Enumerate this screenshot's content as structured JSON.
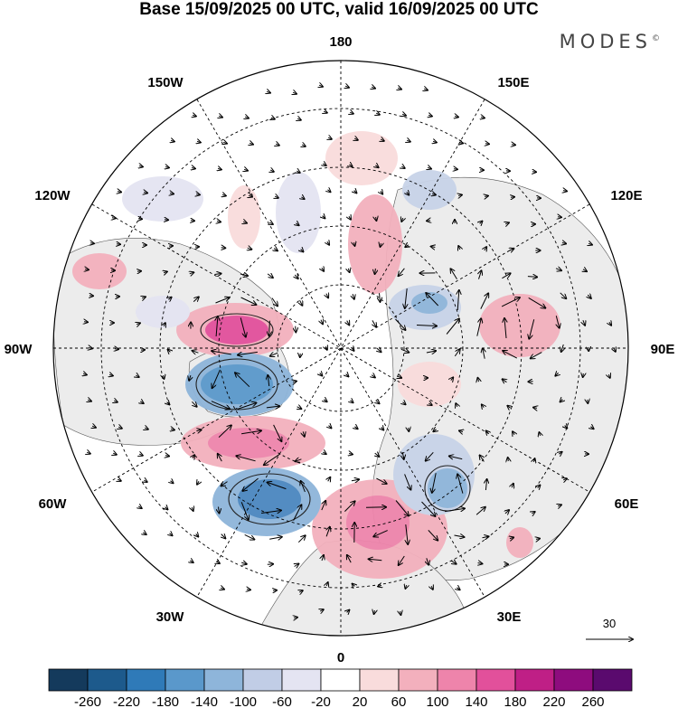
{
  "title": "Base 15/09/2025 00 UTC, valid 16/09/2025 00 UTC",
  "brand": "MODES",
  "brand_mark": "©",
  "longitudes": {
    "top": "180",
    "bottom": "0",
    "left": "90W",
    "right": "90E",
    "upper_left_1": "150W",
    "upper_left_2": "120W",
    "upper_right_1": "150E",
    "upper_right_2": "120E",
    "lower_left_1": "60W",
    "lower_left_2": "30W",
    "lower_right_1": "60E",
    "lower_right_2": "30E"
  },
  "vector_reference": {
    "value": "30"
  },
  "colorbar": {
    "labels": [
      "-260",
      "-220",
      "-180",
      "-140",
      "-100",
      "-60",
      "-20",
      "20",
      "60",
      "100",
      "140",
      "180",
      "220",
      "260"
    ],
    "colors": [
      "#143a5c",
      "#1d5a8c",
      "#2f7ab8",
      "#5a98cb",
      "#8eb5da",
      "#c1cde6",
      "#e4e4f2",
      "#ffffff",
      "#f9dcdc",
      "#f3b0bd",
      "#ee84ab",
      "#e2509b",
      "#bf1f86",
      "#8e0c7e",
      "#5a0a6e"
    ]
  },
  "anomaly_colors": {
    "neg_strong": "#4a86bf",
    "neg_mid": "#8eb5da",
    "neg_weak": "#c8d3e8",
    "neg_faint": "#e4e4f2",
    "pos_strong": "#e2509b",
    "pos_mid": "#ee84ab",
    "pos_weak": "#f3b0bd",
    "pos_faint": "#f9dcdc",
    "land": "#ececec"
  }
}
